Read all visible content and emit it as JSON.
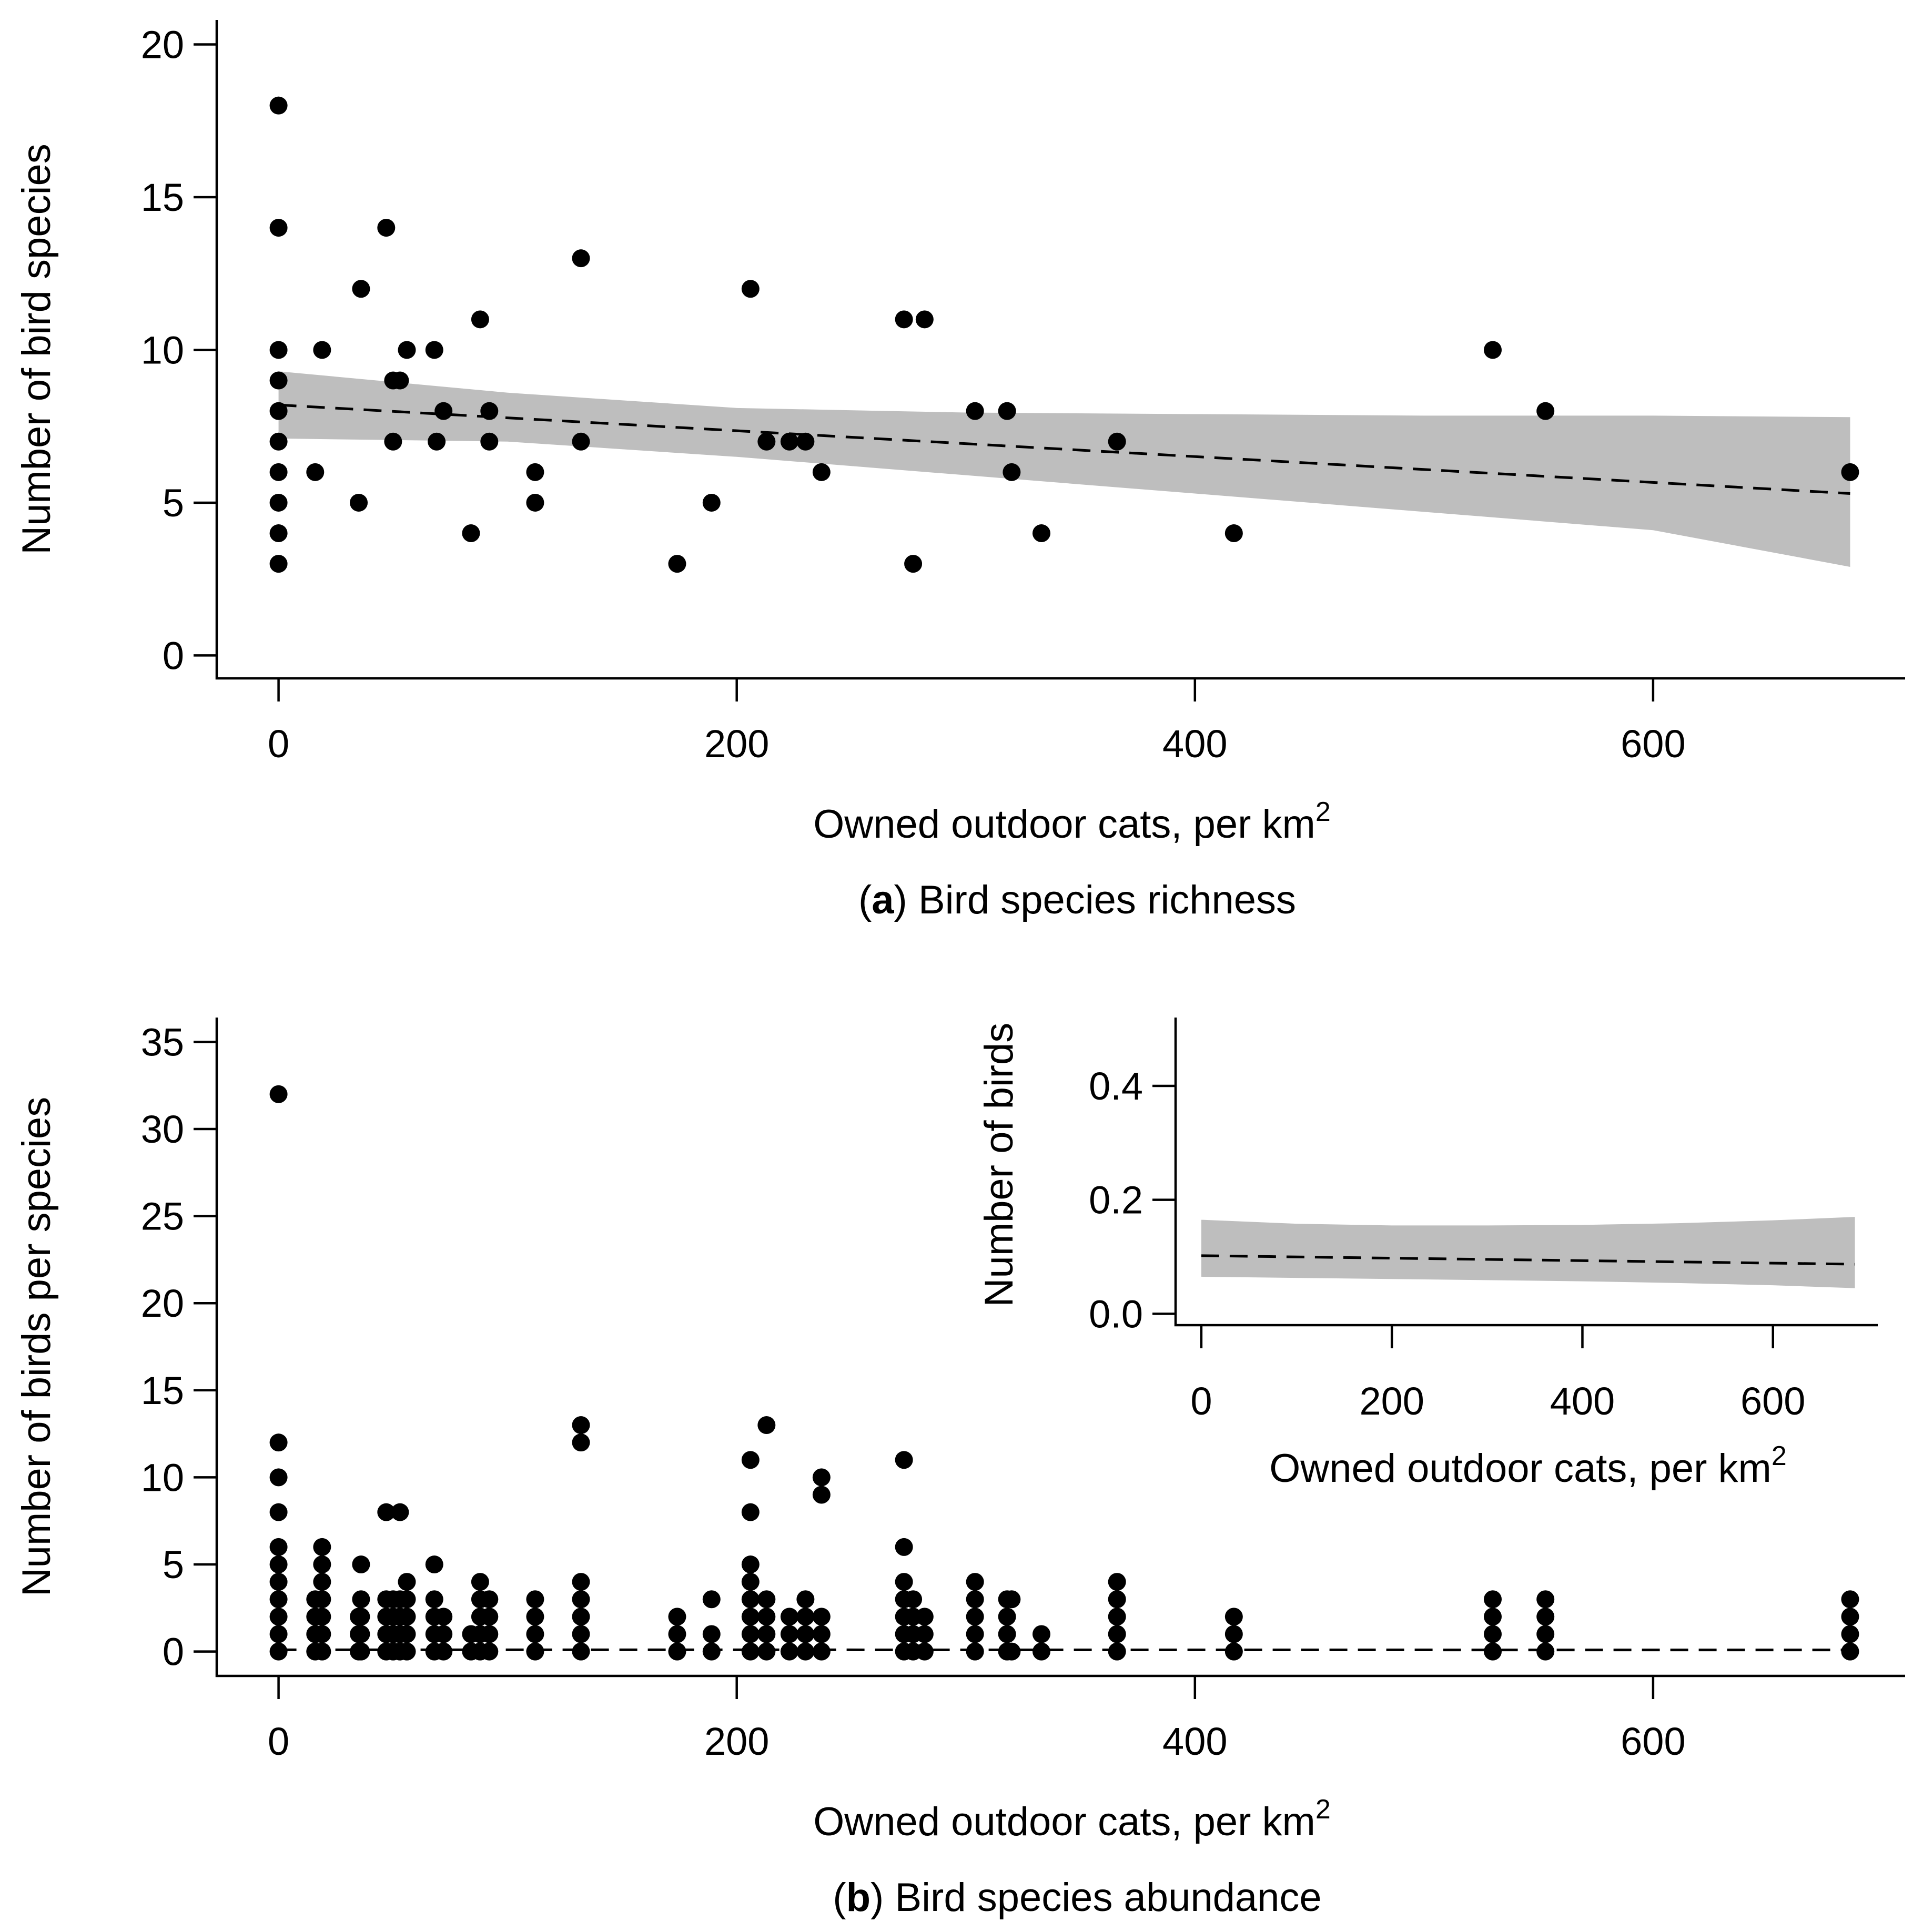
{
  "chart_data": [
    {
      "id": "a",
      "type": "scatter",
      "panel_letter": "a",
      "caption": "Bird species richness",
      "xlabel": "Owned outdoor cats, per km",
      "xlabel_sup": "2",
      "ylabel": "Number of bird species",
      "xlim": [
        -27,
        710
      ],
      "ylim": [
        -0.75,
        20.8
      ],
      "xticks": [
        0,
        200,
        400,
        600
      ],
      "yticks": [
        0,
        5,
        10,
        15,
        20
      ],
      "points": [
        [
          0,
          18
        ],
        [
          0,
          14
        ],
        [
          0,
          10
        ],
        [
          0,
          9
        ],
        [
          0,
          8
        ],
        [
          0,
          7
        ],
        [
          0,
          6
        ],
        [
          0,
          5
        ],
        [
          0,
          4
        ],
        [
          0,
          3
        ],
        [
          19,
          10
        ],
        [
          16,
          6
        ],
        [
          36,
          12
        ],
        [
          35,
          5
        ],
        [
          47,
          14
        ],
        [
          50,
          9
        ],
        [
          50,
          7
        ],
        [
          53,
          9
        ],
        [
          56,
          10
        ],
        [
          68,
          10
        ],
        [
          69,
          7
        ],
        [
          72,
          8
        ],
        [
          84,
          4
        ],
        [
          88,
          11
        ],
        [
          92,
          8
        ],
        [
          92,
          7
        ],
        [
          112,
          6
        ],
        [
          112,
          5
        ],
        [
          132,
          13
        ],
        [
          132,
          7
        ],
        [
          174,
          3
        ],
        [
          189,
          5
        ],
        [
          206,
          12
        ],
        [
          213,
          7
        ],
        [
          223,
          7
        ],
        [
          230,
          7
        ],
        [
          237,
          6
        ],
        [
          273,
          11
        ],
        [
          277,
          3
        ],
        [
          282,
          11
        ],
        [
          304,
          8
        ],
        [
          318,
          8
        ],
        [
          320,
          6
        ],
        [
          333,
          4
        ],
        [
          366,
          7
        ],
        [
          417,
          4
        ],
        [
          530,
          10
        ],
        [
          553,
          8
        ],
        [
          686,
          6
        ]
      ],
      "fit": {
        "x": [
          0,
          686
        ],
        "y": [
          8.2,
          5.3
        ]
      },
      "ci_band": {
        "x": [
          0,
          100,
          200,
          300,
          400,
          500,
          600,
          686
        ],
        "lower": [
          7.1,
          7.0,
          6.5,
          5.9,
          5.3,
          4.7,
          4.1,
          2.9
        ],
        "upper": [
          9.3,
          8.6,
          8.1,
          7.95,
          7.9,
          7.85,
          7.85,
          7.8
        ]
      }
    },
    {
      "id": "b",
      "type": "scatter",
      "panel_letter": "b",
      "caption": "Bird species abundance",
      "xlabel": "Owned outdoor cats, per km",
      "xlabel_sup": "2",
      "ylabel": "Number of birds per species",
      "xlim": [
        -27,
        710
      ],
      "ylim": [
        -1.4,
        36.4
      ],
      "xticks": [
        0,
        200,
        400,
        600
      ],
      "yticks": [
        0,
        5,
        10,
        15,
        20,
        25,
        30,
        35
      ],
      "columns": [
        {
          "x": 0,
          "y": [
            0,
            1,
            2,
            3,
            4,
            5,
            6,
            8,
            10,
            12,
            32
          ]
        },
        {
          "x": 16,
          "y": [
            0,
            1,
            2,
            3
          ]
        },
        {
          "x": 19,
          "y": [
            0,
            1,
            2,
            3,
            4,
            5,
            6
          ]
        },
        {
          "x": 35,
          "y": [
            0,
            1,
            2
          ]
        },
        {
          "x": 36,
          "y": [
            0,
            1,
            2,
            3,
            5
          ]
        },
        {
          "x": 47,
          "y": [
            0,
            1,
            2,
            3,
            8
          ]
        },
        {
          "x": 50,
          "y": [
            0,
            1,
            2,
            3
          ]
        },
        {
          "x": 53,
          "y": [
            0,
            1,
            2,
            3,
            8
          ]
        },
        {
          "x": 56,
          "y": [
            0,
            1,
            2,
            3,
            4
          ]
        },
        {
          "x": 68,
          "y": [
            0,
            1,
            2,
            3,
            5
          ]
        },
        {
          "x": 72,
          "y": [
            0,
            1,
            2
          ]
        },
        {
          "x": 84,
          "y": [
            0,
            1
          ]
        },
        {
          "x": 88,
          "y": [
            0,
            1,
            2,
            3,
            4
          ]
        },
        {
          "x": 92,
          "y": [
            0,
            1,
            2,
            3
          ]
        },
        {
          "x": 112,
          "y": [
            0,
            1,
            2,
            3
          ]
        },
        {
          "x": 132,
          "y": [
            0,
            1,
            2,
            3,
            4,
            12,
            13
          ]
        },
        {
          "x": 174,
          "y": [
            0,
            1,
            2
          ]
        },
        {
          "x": 189,
          "y": [
            0,
            1,
            3
          ]
        },
        {
          "x": 206,
          "y": [
            0,
            1,
            2,
            3,
            4,
            5,
            8,
            11
          ]
        },
        {
          "x": 213,
          "y": [
            0,
            1,
            2,
            3,
            13
          ]
        },
        {
          "x": 223,
          "y": [
            0,
            1,
            2
          ]
        },
        {
          "x": 230,
          "y": [
            0,
            1,
            2,
            3
          ]
        },
        {
          "x": 237,
          "y": [
            0,
            1,
            2,
            9,
            10
          ]
        },
        {
          "x": 273,
          "y": [
            0,
            1,
            2,
            3,
            4,
            6,
            11
          ]
        },
        {
          "x": 277,
          "y": [
            0,
            1,
            2,
            3
          ]
        },
        {
          "x": 282,
          "y": [
            0,
            1,
            2
          ]
        },
        {
          "x": 304,
          "y": [
            0,
            1,
            2,
            3,
            4
          ]
        },
        {
          "x": 318,
          "y": [
            0,
            1,
            2,
            3
          ]
        },
        {
          "x": 320,
          "y": [
            0,
            3
          ]
        },
        {
          "x": 333,
          "y": [
            0,
            1
          ]
        },
        {
          "x": 366,
          "y": [
            0,
            1,
            2,
            3,
            4
          ]
        },
        {
          "x": 417,
          "y": [
            0,
            1,
            2
          ]
        },
        {
          "x": 530,
          "y": [
            0,
            1,
            2,
            3
          ]
        },
        {
          "x": 553,
          "y": [
            0,
            1,
            2,
            3
          ]
        },
        {
          "x": 686,
          "y": [
            0,
            1,
            2,
            3
          ]
        }
      ],
      "fit": {
        "x": [
          0,
          686
        ],
        "y": [
          0.1,
          0.09
        ]
      }
    },
    {
      "id": "b-inset",
      "type": "line",
      "xlabel": "Owned outdoor cats, per km",
      "xlabel_sup": "2",
      "ylabel": "Number of birds",
      "xlim": [
        -27,
        710
      ],
      "ylim": [
        -0.02,
        0.52
      ],
      "xticks": [
        0,
        200,
        400,
        600
      ],
      "yticks": [
        0.0,
        0.2,
        0.4
      ],
      "ytick_labels": [
        "0.0",
        "0.2",
        "0.4"
      ],
      "fit": {
        "x": [
          0,
          686
        ],
        "y": [
          0.102,
          0.087
        ]
      },
      "ci_band": {
        "x": [
          0,
          100,
          200,
          300,
          400,
          500,
          600,
          686
        ],
        "lower": [
          0.065,
          0.063,
          0.061,
          0.059,
          0.057,
          0.054,
          0.05,
          0.045
        ],
        "upper": [
          0.165,
          0.158,
          0.155,
          0.155,
          0.156,
          0.159,
          0.164,
          0.17
        ]
      }
    }
  ]
}
